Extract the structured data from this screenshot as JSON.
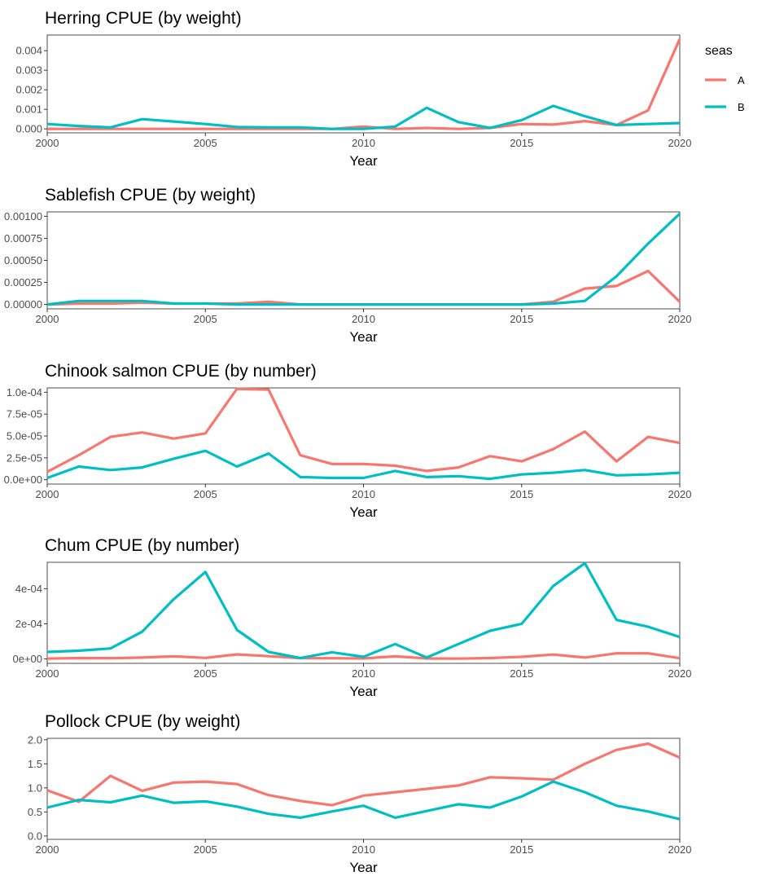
{
  "legend": {
    "title": "seas",
    "entries": [
      {
        "label": "A",
        "color": "#F8766D"
      },
      {
        "label": "B",
        "color": "#00BFC4"
      }
    ]
  },
  "chart_data": [
    {
      "type": "line",
      "title": "Herring CPUE (by weight)",
      "xlabel": "Year",
      "ylabel": "",
      "xlim": [
        2000,
        2020
      ],
      "ylim": [
        -0.0002,
        0.0048
      ],
      "xticks": [
        2000,
        2005,
        2010,
        2015,
        2020
      ],
      "yticks": [
        0,
        0.001,
        0.002,
        0.003,
        0.004
      ],
      "ytick_labels": [
        "0.000",
        "0.001",
        "0.002",
        "0.003",
        "0.004"
      ],
      "x": [
        2000,
        2001,
        2002,
        2003,
        2004,
        2005,
        2006,
        2007,
        2008,
        2009,
        2010,
        2011,
        2012,
        2013,
        2014,
        2015,
        2016,
        2017,
        2018,
        2019,
        2020
      ],
      "series": [
        {
          "name": "A",
          "values": [
            0.0,
            0.0,
            0.0,
            0.0,
            0.0,
            0.0,
            0.0,
            0.0,
            0.0,
            0.0,
            0.00012,
            0.0,
            5e-05,
            0.0,
            5e-05,
            0.00025,
            0.00022,
            0.0004,
            0.0002,
            0.00095,
            0.0046
          ]
        },
        {
          "name": "B",
          "values": [
            0.00025,
            0.00015,
            8e-05,
            0.0005,
            0.00038,
            0.00025,
            0.0001,
            8e-05,
            8e-05,
            0.0,
            0.0,
            0.00012,
            0.00108,
            0.00035,
            5e-05,
            0.00045,
            0.00118,
            0.00065,
            0.0002,
            0.00025,
            0.0003
          ]
        }
      ]
    },
    {
      "type": "line",
      "title": "Sablefish CPUE (by weight)",
      "xlabel": "Year",
      "ylabel": "",
      "xlim": [
        2000,
        2020
      ],
      "ylim": [
        -5e-05,
        0.00105
      ],
      "xticks": [
        2000,
        2005,
        2010,
        2015,
        2020
      ],
      "yticks": [
        0,
        0.00025,
        0.0005,
        0.00075,
        0.001
      ],
      "ytick_labels": [
        "0.00000",
        "0.00025",
        "0.00050",
        "0.00075",
        "0.00100"
      ],
      "x": [
        2000,
        2001,
        2002,
        2003,
        2004,
        2005,
        2006,
        2007,
        2008,
        2009,
        2010,
        2011,
        2012,
        2013,
        2014,
        2015,
        2016,
        2017,
        2018,
        2019,
        2020
      ],
      "series": [
        {
          "name": "A",
          "values": [
            0.0,
            1e-05,
            1e-05,
            2e-05,
            1e-05,
            1e-05,
            1e-05,
            3e-05,
            0.0,
            0.0,
            0.0,
            0.0,
            0.0,
            0.0,
            0.0,
            0.0,
            3e-05,
            0.00018,
            0.00021,
            0.00038,
            3e-05
          ]
        },
        {
          "name": "B",
          "values": [
            0.0,
            4e-05,
            4e-05,
            4e-05,
            1e-05,
            1e-05,
            0.0,
            0.0,
            0.0,
            0.0,
            0.0,
            0.0,
            0.0,
            0.0,
            0.0,
            0.0,
            1e-05,
            4e-05,
            0.00032,
            0.00069,
            0.00103
          ]
        }
      ]
    },
    {
      "type": "line",
      "title": "Chinook salmon CPUE (by number)",
      "xlabel": "Year",
      "ylabel": "",
      "xlim": [
        2000,
        2020
      ],
      "ylim": [
        -5e-06,
        0.000105
      ],
      "xticks": [
        2000,
        2005,
        2010,
        2015,
        2020
      ],
      "yticks": [
        0,
        2.5e-05,
        5e-05,
        7.5e-05,
        0.0001
      ],
      "ytick_labels": [
        "0.0e+00",
        "2.5e-05",
        "5.0e-05",
        "7.5e-05",
        "1.0e-04"
      ],
      "x": [
        2000,
        2001,
        2002,
        2003,
        2004,
        2005,
        2006,
        2007,
        2008,
        2009,
        2010,
        2011,
        2012,
        2013,
        2014,
        2015,
        2016,
        2017,
        2018,
        2019,
        2020
      ],
      "series": [
        {
          "name": "A",
          "values": [
            9e-06,
            2.8e-05,
            4.9e-05,
            5.4e-05,
            4.7e-05,
            5.3e-05,
            0.000104,
            0.000103,
            2.8e-05,
            1.8e-05,
            1.8e-05,
            1.6e-05,
            1e-05,
            1.4e-05,
            2.7e-05,
            2.1e-05,
            3.5e-05,
            5.5e-05,
            2.1e-05,
            4.9e-05,
            4.2e-05
          ]
        },
        {
          "name": "B",
          "values": [
            2e-06,
            1.5e-05,
            1.1e-05,
            1.4e-05,
            2.4e-05,
            3.3e-05,
            1.5e-05,
            3e-05,
            3e-06,
            2e-06,
            2e-06,
            1e-05,
            3e-06,
            4e-06,
            1e-06,
            6e-06,
            8e-06,
            1.1e-05,
            5e-06,
            6e-06,
            8e-06
          ]
        }
      ]
    },
    {
      "type": "line",
      "title": "Chum CPUE (by number)",
      "xlabel": "Year",
      "ylabel": "",
      "xlim": [
        2000,
        2020
      ],
      "ylim": [
        -2.5e-05,
        0.00055
      ],
      "xticks": [
        2000,
        2005,
        2010,
        2015,
        2020
      ],
      "yticks": [
        0,
        0.0002,
        0.0004
      ],
      "ytick_labels": [
        "0e+00",
        "2e-04",
        "4e-04"
      ],
      "x": [
        2000,
        2001,
        2002,
        2003,
        2004,
        2005,
        2006,
        2007,
        2008,
        2009,
        2010,
        2011,
        2012,
        2013,
        2014,
        2015,
        2016,
        2017,
        2018,
        2019,
        2020
      ],
      "series": [
        {
          "name": "A",
          "values": [
            2e-06,
            5e-06,
            4e-06,
            8e-06,
            1.5e-05,
            6e-06,
            2.6e-05,
            1.6e-05,
            4e-06,
            4e-06,
            3e-06,
            1.5e-05,
            3e-06,
            2e-06,
            5e-06,
            1.2e-05,
            2.5e-05,
            8e-06,
            3.2e-05,
            3.2e-05,
            4e-06
          ]
        },
        {
          "name": "B",
          "values": [
            4e-05,
            4.7e-05,
            6e-05,
            0.000155,
            0.00034,
            0.000495,
            0.000165,
            4e-05,
            5e-06,
            3.8e-05,
            1.2e-05,
            8.5e-05,
            8e-06,
            8.5e-05,
            0.00016,
            0.0002,
            0.000415,
            0.000545,
            0.000222,
            0.000183,
            0.000125
          ]
        }
      ]
    },
    {
      "type": "line",
      "title": "Pollock CPUE (by weight)",
      "xlabel": "Year",
      "ylabel": "",
      "xlim": [
        2000,
        2020
      ],
      "ylim": [
        -0.07,
        2.03
      ],
      "xticks": [
        2000,
        2005,
        2010,
        2015,
        2020
      ],
      "yticks": [
        0,
        0.5,
        1.0,
        1.5,
        2.0
      ],
      "ytick_labels": [
        "0.0",
        "0.5",
        "1.0",
        "1.5",
        "2.0"
      ],
      "x": [
        2000,
        2001,
        2002,
        2003,
        2004,
        2005,
        2006,
        2007,
        2008,
        2009,
        2010,
        2011,
        2012,
        2013,
        2014,
        2015,
        2016,
        2017,
        2018,
        2019,
        2020
      ],
      "series": [
        {
          "name": "A",
          "values": [
            0.95,
            0.71,
            1.25,
            0.94,
            1.11,
            1.13,
            1.08,
            0.85,
            0.73,
            0.64,
            0.84,
            0.91,
            0.98,
            1.05,
            1.22,
            1.2,
            1.17,
            1.5,
            1.79,
            1.92,
            1.63
          ]
        },
        {
          "name": "B",
          "values": [
            0.59,
            0.75,
            0.7,
            0.84,
            0.69,
            0.72,
            0.61,
            0.46,
            0.38,
            0.51,
            0.63,
            0.38,
            0.52,
            0.66,
            0.59,
            0.82,
            1.13,
            0.91,
            0.63,
            0.51,
            0.35
          ]
        }
      ]
    }
  ]
}
